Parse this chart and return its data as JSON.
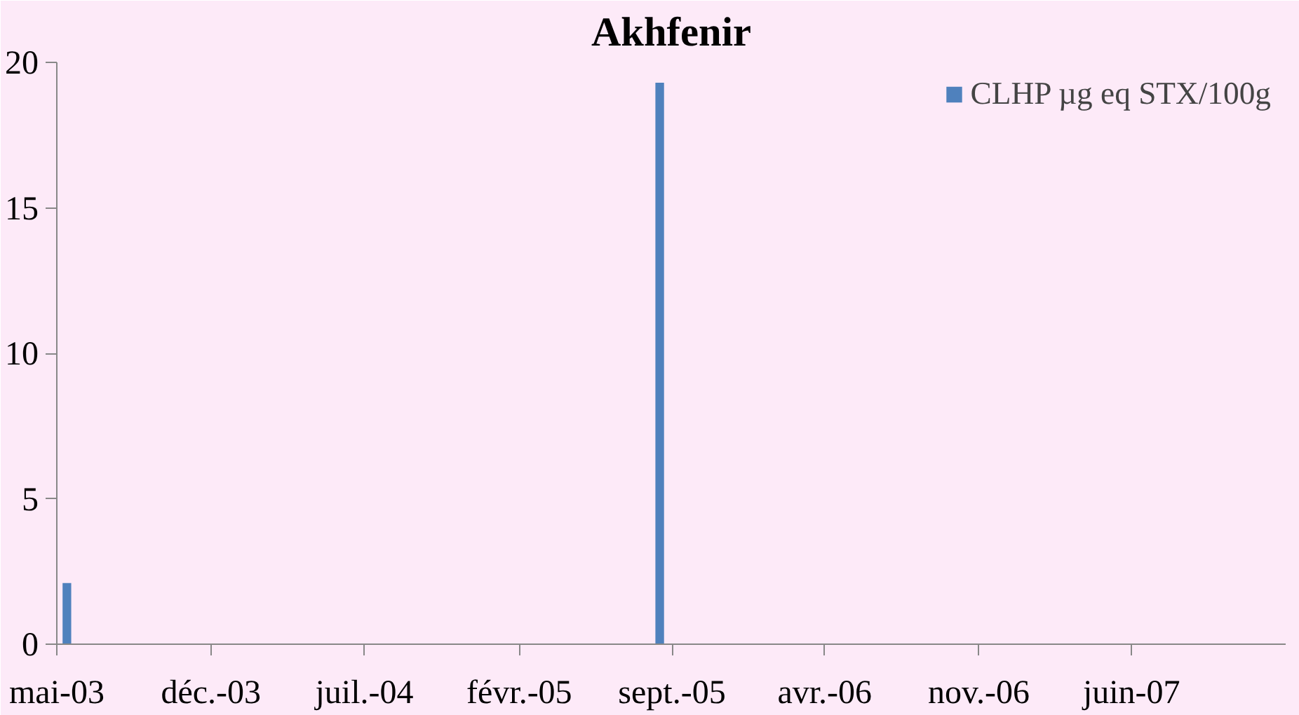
{
  "chart_data": {
    "type": "bar",
    "title": "Akhfenir",
    "x": [
      "2003-05-15",
      "2005-08-15"
    ],
    "series": [
      {
        "name": "CLHP µg eq STX/100g",
        "color": "#4f81bd",
        "values": [
          2.1,
          19.3
        ]
      }
    ],
    "xlim": [
      "2003-05-01",
      "2008-01-01"
    ],
    "xticks": [
      {
        "value": "2003-05-01",
        "label": "mai-03"
      },
      {
        "value": "2003-12-01",
        "label": "déc.-03"
      },
      {
        "value": "2004-07-01",
        "label": "juil.-04"
      },
      {
        "value": "2005-02-01",
        "label": "févr.-05"
      },
      {
        "value": "2005-09-01",
        "label": "sept.-05"
      },
      {
        "value": "2006-04-01",
        "label": "avr.-06"
      },
      {
        "value": "2006-11-01",
        "label": "nov.-06"
      },
      {
        "value": "2007-06-01",
        "label": "juin-07"
      }
    ],
    "ylim": [
      0,
      20
    ],
    "yticks": [
      0,
      5,
      10,
      15,
      20
    ],
    "grid": false,
    "legend": "top right"
  }
}
